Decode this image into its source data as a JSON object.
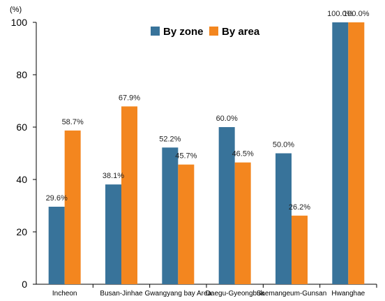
{
  "chart_data": {
    "type": "bar",
    "unit_label": "(%)",
    "categories": [
      "Incheon",
      "Busan-Jinhae",
      "Gwangyang bay Area",
      "Daegu-Gyeongbuk",
      "Saemangeum-Gunsan",
      "Hwanghae"
    ],
    "series": [
      {
        "name": "By zone",
        "color": "#38739a",
        "values": [
          29.6,
          38.1,
          52.2,
          60.0,
          50.0,
          100.0
        ],
        "labels": [
          "29.6%",
          "38.1%",
          "52.2%",
          "60.0%",
          "50.0%",
          "100.0%"
        ]
      },
      {
        "name": "By area",
        "color": "#f3861f",
        "values": [
          58.7,
          67.9,
          45.7,
          46.5,
          26.2,
          100.0
        ],
        "labels": [
          "58.7%",
          "67.9%",
          "45.7%",
          "46.5%",
          "26.2%",
          "100.0%"
        ]
      }
    ],
    "ylim": [
      0,
      100
    ],
    "yticks": [
      "0",
      "20",
      "40",
      "60",
      "80",
      "100"
    ],
    "grid": false,
    "legend_position": "top"
  }
}
